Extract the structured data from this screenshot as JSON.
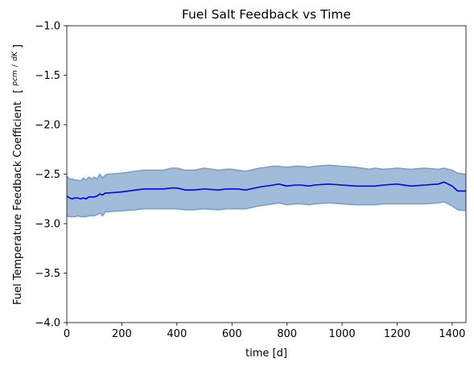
{
  "chart_data": {
    "type": "line",
    "title": "Fuel Salt Feedback vs Time",
    "xlabel": "time [d]",
    "ylabel": "Fuel Temperature Feedback Coefficient",
    "ylabel_unit_num": "pcm",
    "ylabel_unit_den": "dK",
    "xlim": [
      0,
      1450
    ],
    "ylim": [
      -4.0,
      -1.0
    ],
    "xticks": [
      0,
      200,
      400,
      600,
      800,
      1000,
      1200,
      1400
    ],
    "xtick_labels": [
      "0",
      "200",
      "400",
      "600",
      "800",
      "1000",
      "1200",
      "1400"
    ],
    "yticks": [
      -4.0,
      -3.5,
      -3.0,
      -2.5,
      -2.0,
      -1.5,
      -1.0
    ],
    "ytick_labels": [
      "−4.0",
      "−3.5",
      "−3.0",
      "−2.5",
      "−2.0",
      "−1.5",
      "−1.0"
    ],
    "grid": false,
    "legend": "none",
    "colors": {
      "line": "#0000ff",
      "band_fill": "#a0bcd8",
      "band_edge": "#7ba1c7"
    },
    "series": [
      {
        "x": [
          0,
          10,
          20,
          30,
          40,
          50,
          60,
          70,
          80,
          90,
          100,
          110,
          120,
          130,
          140,
          150,
          200,
          250,
          280,
          300,
          350,
          380,
          400,
          430,
          460,
          500,
          550,
          580,
          600,
          620,
          650,
          700,
          750,
          770,
          800,
          830,
          850,
          880,
          900,
          950,
          1000,
          1050,
          1100,
          1120,
          1150,
          1200,
          1250,
          1300,
          1350,
          1370,
          1400,
          1420,
          1450
        ],
        "y": [
          -2.72,
          -2.74,
          -2.75,
          -2.74,
          -2.74,
          -2.75,
          -2.74,
          -2.75,
          -2.73,
          -2.73,
          -2.73,
          -2.72,
          -2.7,
          -2.71,
          -2.69,
          -2.69,
          -2.68,
          -2.66,
          -2.65,
          -2.65,
          -2.65,
          -2.64,
          -2.64,
          -2.66,
          -2.66,
          -2.65,
          -2.66,
          -2.65,
          -2.65,
          -2.65,
          -2.66,
          -2.63,
          -2.61,
          -2.6,
          -2.62,
          -2.61,
          -2.61,
          -2.62,
          -2.61,
          -2.6,
          -2.61,
          -2.62,
          -2.62,
          -2.62,
          -2.61,
          -2.6,
          -2.62,
          -2.61,
          -2.6,
          -2.58,
          -2.62,
          -2.67,
          -2.67
        ],
        "upper": [
          -2.52,
          -2.55,
          -2.55,
          -2.56,
          -2.56,
          -2.57,
          -2.54,
          -2.56,
          -2.53,
          -2.55,
          -2.53,
          -2.55,
          -2.5,
          -2.54,
          -2.51,
          -2.5,
          -2.49,
          -2.47,
          -2.46,
          -2.46,
          -2.46,
          -2.44,
          -2.44,
          -2.46,
          -2.46,
          -2.44,
          -2.46,
          -2.45,
          -2.45,
          -2.46,
          -2.47,
          -2.44,
          -2.42,
          -2.42,
          -2.43,
          -2.42,
          -2.42,
          -2.43,
          -2.42,
          -2.41,
          -2.42,
          -2.43,
          -2.45,
          -2.44,
          -2.45,
          -2.44,
          -2.45,
          -2.44,
          -2.45,
          -2.44,
          -2.46,
          -2.49,
          -2.5
        ],
        "lower": [
          -2.92,
          -2.93,
          -2.93,
          -2.93,
          -2.92,
          -2.93,
          -2.93,
          -2.93,
          -2.92,
          -2.92,
          -2.92,
          -2.91,
          -2.89,
          -2.92,
          -2.88,
          -2.88,
          -2.87,
          -2.86,
          -2.85,
          -2.85,
          -2.85,
          -2.85,
          -2.85,
          -2.86,
          -2.86,
          -2.85,
          -2.86,
          -2.85,
          -2.85,
          -2.85,
          -2.85,
          -2.82,
          -2.8,
          -2.79,
          -2.81,
          -2.8,
          -2.8,
          -2.81,
          -2.8,
          -2.79,
          -2.8,
          -2.81,
          -2.81,
          -2.81,
          -2.8,
          -2.8,
          -2.8,
          -2.8,
          -2.79,
          -2.78,
          -2.82,
          -2.86,
          -2.87
        ]
      }
    ]
  }
}
